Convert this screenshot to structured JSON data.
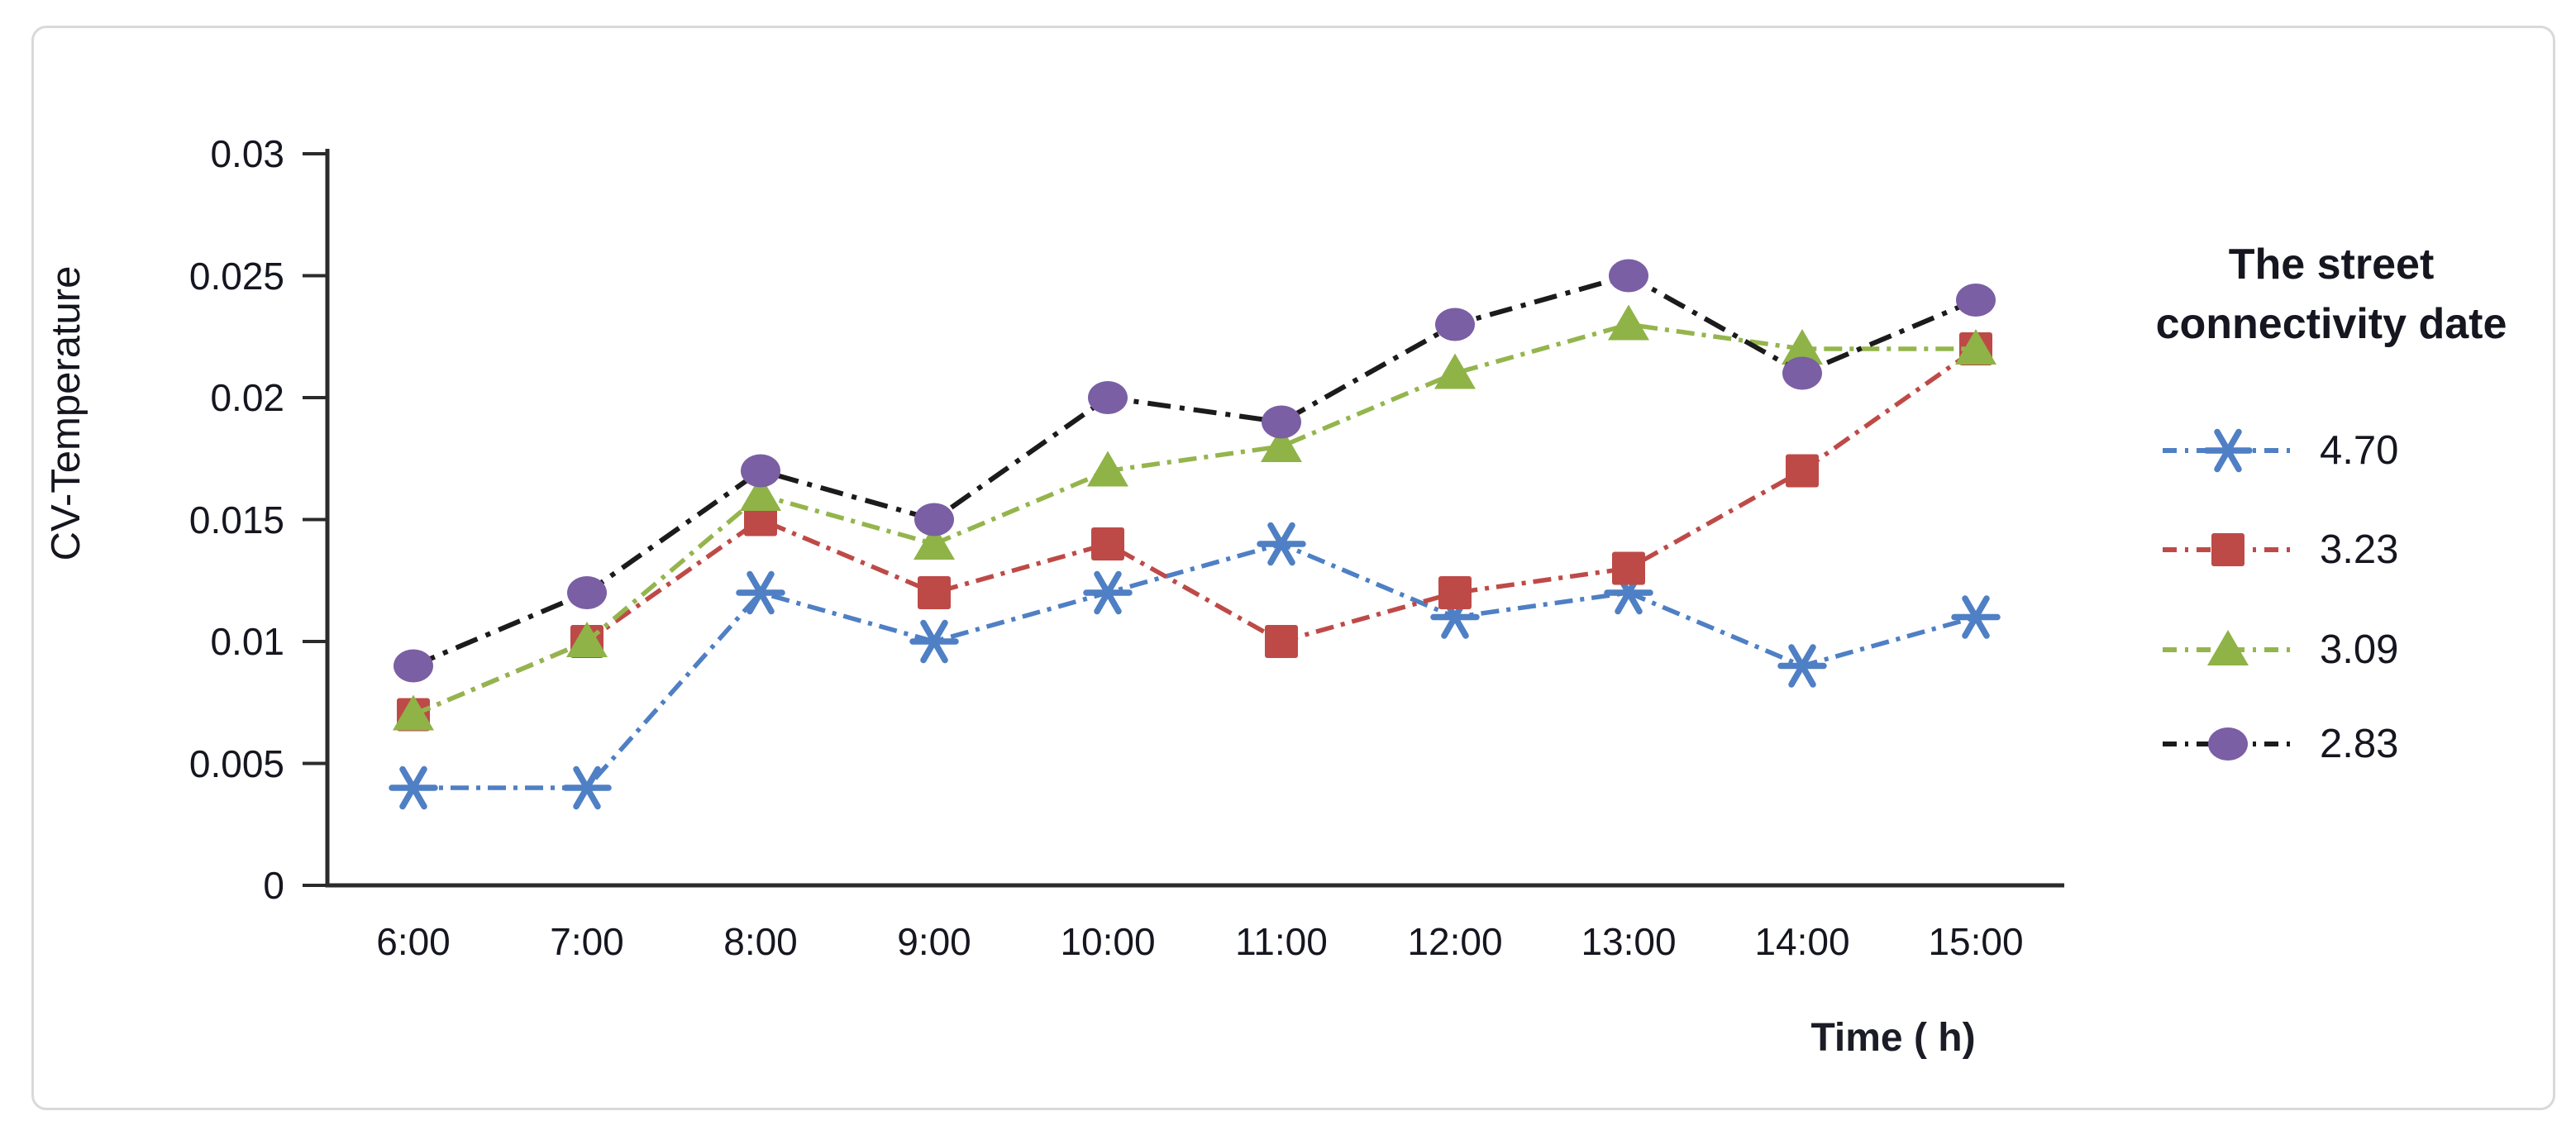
{
  "figure": {
    "background": "#ffffff",
    "border_color": "#d9d9d9"
  },
  "chart_data": {
    "type": "line",
    "title": "",
    "xlabel": "Time ( h)",
    "ylabel": "CV-Temperature",
    "categories": [
      "6:00",
      "7:00",
      "8:00",
      "9:00",
      "10:00",
      "11:00",
      "12:00",
      "13:00",
      "14:00",
      "15:00"
    ],
    "ylim": [
      0,
      0.03
    ],
    "ytick_step": 0.005,
    "ytick_labels": [
      "0",
      "0.005",
      "0.01",
      "0.015",
      "0.02",
      "0.025",
      "0.03"
    ],
    "grid": false,
    "legend_position": "right",
    "legend_title_lines": {
      "0": "The street",
      "1": "connectivity date"
    },
    "series": [
      {
        "name": "4.70",
        "marker": "asterisk",
        "marker_color": "#4f7fc4",
        "line_color": "#4f7fc4",
        "line_style": "dash-dot",
        "values": [
          0.004,
          0.004,
          0.012,
          0.01,
          0.012,
          0.014,
          0.011,
          0.012,
          0.009,
          0.011
        ]
      },
      {
        "name": "3.23",
        "marker": "square",
        "marker_color": "#be4a47",
        "line_color": "#be4a47",
        "line_style": "dash-dot",
        "values": [
          0.007,
          0.01,
          0.015,
          0.012,
          0.014,
          0.01,
          0.012,
          0.013,
          0.017,
          0.022
        ]
      },
      {
        "name": "3.09",
        "marker": "triangle",
        "marker_color": "#8fb347",
        "line_color": "#94b54d",
        "line_style": "dash-dot",
        "values": [
          0.007,
          0.01,
          0.016,
          0.014,
          0.017,
          0.018,
          0.021,
          0.023,
          0.022,
          0.022
        ]
      },
      {
        "name": "2.83",
        "marker": "circle",
        "marker_color": "#7a5fa4",
        "line_color": "#1b1b1b",
        "line_style": "long-dash-dot",
        "values": [
          0.009,
          0.012,
          0.017,
          0.015,
          0.02,
          0.019,
          0.023,
          0.025,
          0.021,
          0.024
        ]
      }
    ]
  }
}
